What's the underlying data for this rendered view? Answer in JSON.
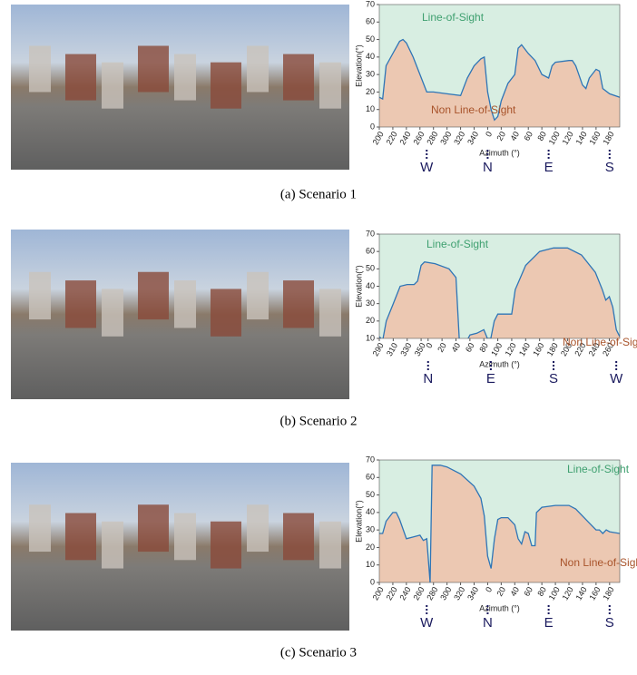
{
  "chart_data": [
    {
      "type": "area",
      "caption": "(a) Scenario 1",
      "ylabel": "Elevation(°)",
      "xlabel": "Azimuth (°)",
      "los_label": "Line-of-Sight",
      "nlos_label": "Non Line-of-Sight",
      "los_color": "#d8eee2",
      "nlos_color": "#ecc8b2",
      "line_color": "#2e75b6",
      "xlim": [
        200,
        195
      ],
      "ylim": [
        0,
        70
      ],
      "yticks": [
        0,
        10,
        20,
        30,
        40,
        50,
        60,
        70
      ],
      "xticks": [
        200,
        220,
        240,
        260,
        280,
        300,
        320,
        340,
        0,
        20,
        40,
        60,
        80,
        100,
        120,
        140,
        160,
        180
      ],
      "compass": [
        {
          "label": "W",
          "value": 270
        },
        {
          "label": "N",
          "value": 0
        },
        {
          "label": "E",
          "value": 90
        },
        {
          "label": "S",
          "value": 180
        }
      ],
      "x": [
        200,
        205,
        210,
        220,
        230,
        235,
        240,
        250,
        260,
        270,
        280,
        300,
        320,
        330,
        340,
        350,
        355,
        0,
        5,
        10,
        15,
        20,
        30,
        40,
        45,
        50,
        60,
        70,
        80,
        90,
        95,
        100,
        120,
        125,
        130,
        140,
        145,
        150,
        160,
        165,
        170,
        180,
        195
      ],
      "values": [
        17,
        16,
        35,
        42,
        49,
        50,
        48,
        40,
        30,
        20,
        20,
        19,
        18,
        28,
        35,
        39,
        40,
        20,
        10,
        4,
        6,
        15,
        25,
        30,
        45,
        47,
        42,
        38,
        30,
        28,
        35,
        37,
        38,
        38,
        35,
        24,
        22,
        28,
        33,
        32,
        22,
        19,
        17
      ]
    },
    {
      "type": "area",
      "caption": "(b) Scenario 2",
      "ylabel": "Elevation(°)",
      "xlabel": "Azimuth (°)",
      "los_label": "Line-of-Sight",
      "nlos_label": "Non Line-of-Sight",
      "los_color": "#d8eee2",
      "nlos_color": "#ecc8b2",
      "line_color": "#2e75b6",
      "xlim": [
        290,
        275
      ],
      "ylim": [
        10,
        70
      ],
      "yticks": [
        10,
        20,
        30,
        40,
        50,
        60,
        70
      ],
      "xticks": [
        290,
        310,
        330,
        350,
        0,
        20,
        40,
        60,
        80,
        100,
        120,
        140,
        160,
        180,
        200,
        220,
        240,
        260
      ],
      "compass": [
        {
          "label": "N",
          "value": 0
        },
        {
          "label": "E",
          "value": 90
        },
        {
          "label": "S",
          "value": 180
        },
        {
          "label": "W",
          "value": 270
        }
      ],
      "x": [
        290,
        295,
        300,
        310,
        320,
        330,
        340,
        345,
        350,
        355,
        10,
        30,
        40,
        45,
        50,
        55,
        60,
        70,
        80,
        85,
        90,
        95,
        100,
        120,
        125,
        140,
        160,
        180,
        200,
        220,
        240,
        250,
        255,
        260,
        265,
        270,
        275
      ],
      "values": [
        11,
        9,
        20,
        30,
        40,
        41,
        41,
        43,
        52,
        54,
        53,
        50,
        45,
        8,
        6,
        8,
        12,
        13,
        15,
        10,
        10,
        20,
        24,
        24,
        38,
        52,
        60,
        62,
        62,
        58,
        48,
        38,
        32,
        34,
        28,
        15,
        11
      ]
    },
    {
      "type": "area",
      "caption": "(c) Scenario 3",
      "ylabel": "Elevation(°)",
      "xlabel": "Azimuth (°)",
      "los_label": "Line-of-Sight",
      "nlos_label": "Non Line-of-Sight",
      "los_color": "#d8eee2",
      "nlos_color": "#ecc8b2",
      "line_color": "#2e75b6",
      "xlim": [
        200,
        195
      ],
      "ylim": [
        0,
        70
      ],
      "yticks": [
        0,
        10,
        20,
        30,
        40,
        50,
        60,
        70
      ],
      "xticks": [
        200,
        220,
        240,
        260,
        280,
        300,
        320,
        340,
        0,
        20,
        40,
        60,
        80,
        100,
        120,
        140,
        160,
        180
      ],
      "compass": [
        {
          "label": "W",
          "value": 270
        },
        {
          "label": "N",
          "value": 0
        },
        {
          "label": "E",
          "value": 90
        },
        {
          "label": "S",
          "value": 180
        }
      ],
      "x": [
        200,
        205,
        210,
        220,
        225,
        230,
        240,
        250,
        260,
        265,
        270,
        275,
        278,
        290,
        300,
        320,
        340,
        350,
        355,
        0,
        5,
        10,
        15,
        20,
        30,
        40,
        45,
        50,
        55,
        60,
        65,
        70,
        72,
        80,
        100,
        120,
        130,
        140,
        150,
        160,
        165,
        170,
        175,
        180,
        195
      ],
      "values": [
        28,
        28,
        35,
        40,
        40,
        36,
        25,
        26,
        27,
        24,
        25,
        0,
        67,
        67,
        66,
        62,
        55,
        48,
        38,
        15,
        8,
        25,
        36,
        37,
        37,
        33,
        25,
        22,
        29,
        28,
        21,
        21,
        40,
        43,
        44,
        44,
        42,
        38,
        34,
        30,
        30,
        28,
        30,
        29,
        28
      ]
    }
  ]
}
